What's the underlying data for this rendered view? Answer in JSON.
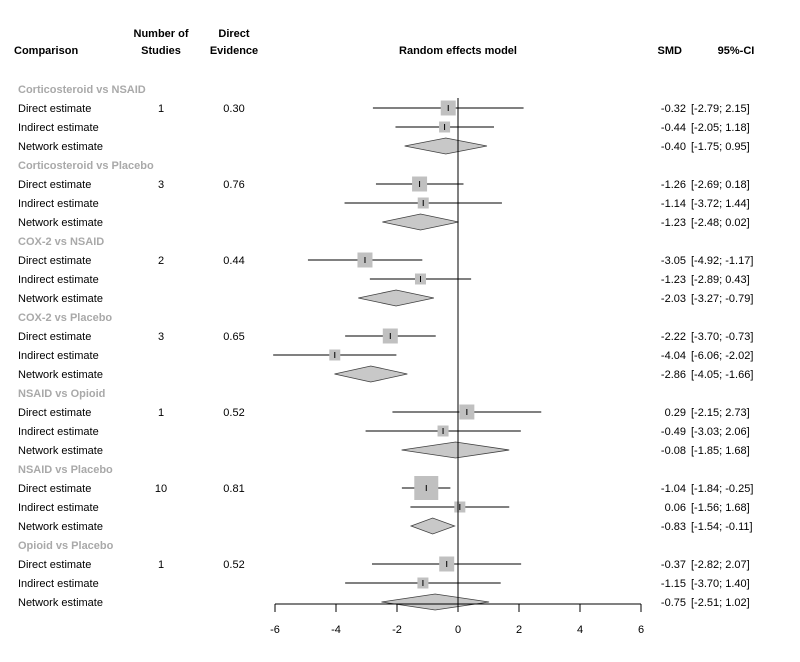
{
  "headers": {
    "comparison": "Comparison",
    "studies_line1": "Number of",
    "studies_line2": "Studies",
    "direct_line1": "Direct",
    "direct_line2": "Evidence",
    "model": "Random effects model",
    "smd": "SMD",
    "ci": "95%-CI"
  },
  "chart_data": {
    "type": "forest",
    "xlim": [
      -6,
      6
    ],
    "xticks": [
      "-6",
      "-4",
      "-2",
      "0",
      "2",
      "4",
      "6"
    ],
    "reference_line": 0,
    "groups": [
      {
        "title": "Corticosteroid vs NSAID",
        "studies": "1",
        "direct_evidence": "0.30",
        "rows": [
          {
            "label": "Direct estimate",
            "kind": "direct",
            "smd": -0.32,
            "lo": -2.79,
            "hi": 2.15,
            "smd_text": "-0.32",
            "ci_text": "[-2.79; 2.15]"
          },
          {
            "label": "Indirect estimate",
            "kind": "indirect",
            "smd": -0.44,
            "lo": -2.05,
            "hi": 1.18,
            "smd_text": "-0.44",
            "ci_text": "[-2.05; 1.18]"
          },
          {
            "label": "Network estimate",
            "kind": "network",
            "smd": -0.4,
            "lo": -1.75,
            "hi": 0.95,
            "smd_text": "-0.40",
            "ci_text": "[-1.75; 0.95]"
          }
        ]
      },
      {
        "title": "Corticosteroid vs Placebo",
        "studies": "3",
        "direct_evidence": "0.76",
        "rows": [
          {
            "label": "Direct estimate",
            "kind": "direct",
            "smd": -1.26,
            "lo": -2.69,
            "hi": 0.18,
            "smd_text": "-1.26",
            "ci_text": "[-2.69; 0.18]"
          },
          {
            "label": "Indirect estimate",
            "kind": "indirect",
            "smd": -1.14,
            "lo": -3.72,
            "hi": 1.44,
            "smd_text": "-1.14",
            "ci_text": "[-3.72; 1.44]"
          },
          {
            "label": "Network estimate",
            "kind": "network",
            "smd": -1.23,
            "lo": -2.48,
            "hi": 0.02,
            "smd_text": "-1.23",
            "ci_text": "[-2.48; 0.02]"
          }
        ]
      },
      {
        "title": "COX-2 vs NSAID",
        "studies": "2",
        "direct_evidence": "0.44",
        "rows": [
          {
            "label": "Direct estimate",
            "kind": "direct",
            "smd": -3.05,
            "lo": -4.92,
            "hi": -1.17,
            "smd_text": "-3.05",
            "ci_text": "[-4.92; -1.17]"
          },
          {
            "label": "Indirect estimate",
            "kind": "indirect",
            "smd": -1.23,
            "lo": -2.89,
            "hi": 0.43,
            "smd_text": "-1.23",
            "ci_text": "[-2.89; 0.43]"
          },
          {
            "label": "Network estimate",
            "kind": "network",
            "smd": -2.03,
            "lo": -3.27,
            "hi": -0.79,
            "smd_text": "-2.03",
            "ci_text": "[-3.27; -0.79]"
          }
        ]
      },
      {
        "title": "COX-2 vs Placebo",
        "studies": "3",
        "direct_evidence": "0.65",
        "rows": [
          {
            "label": "Direct estimate",
            "kind": "direct",
            "smd": -2.22,
            "lo": -3.7,
            "hi": -0.73,
            "smd_text": "-2.22",
            "ci_text": "[-3.70; -0.73]"
          },
          {
            "label": "Indirect estimate",
            "kind": "indirect",
            "smd": -4.04,
            "lo": -6.06,
            "hi": -2.02,
            "smd_text": "-4.04",
            "ci_text": "[-6.06; -2.02]"
          },
          {
            "label": "Network estimate",
            "kind": "network",
            "smd": -2.86,
            "lo": -4.05,
            "hi": -1.66,
            "smd_text": "-2.86",
            "ci_text": "[-4.05; -1.66]"
          }
        ]
      },
      {
        "title": "NSAID vs Opioid",
        "studies": "1",
        "direct_evidence": "0.52",
        "rows": [
          {
            "label": "Direct estimate",
            "kind": "direct",
            "smd": 0.29,
            "lo": -2.15,
            "hi": 2.73,
            "smd_text": "0.29",
            "ci_text": "[-2.15; 2.73]"
          },
          {
            "label": "Indirect estimate",
            "kind": "indirect",
            "smd": -0.49,
            "lo": -3.03,
            "hi": 2.06,
            "smd_text": "-0.49",
            "ci_text": "[-3.03; 2.06]"
          },
          {
            "label": "Network estimate",
            "kind": "network",
            "smd": -0.08,
            "lo": -1.85,
            "hi": 1.68,
            "smd_text": "-0.08",
            "ci_text": "[-1.85; 1.68]"
          }
        ]
      },
      {
        "title": "NSAID vs Placebo",
        "studies": "10",
        "direct_evidence": "0.81",
        "rows": [
          {
            "label": "Direct estimate",
            "kind": "direct",
            "smd": -1.04,
            "lo": -1.84,
            "hi": -0.25,
            "smd_text": "-1.04",
            "ci_text": "[-1.84; -0.25]"
          },
          {
            "label": "Indirect estimate",
            "kind": "indirect",
            "smd": 0.06,
            "lo": -1.56,
            "hi": 1.68,
            "smd_text": "0.06",
            "ci_text": "[-1.56; 1.68]"
          },
          {
            "label": "Network estimate",
            "kind": "network",
            "smd": -0.83,
            "lo": -1.54,
            "hi": -0.11,
            "smd_text": "-0.83",
            "ci_text": "[-1.54; -0.11]"
          }
        ]
      },
      {
        "title": "Opioid vs Placebo",
        "studies": "1",
        "direct_evidence": "0.52",
        "rows": [
          {
            "label": "Direct estimate",
            "kind": "direct",
            "smd": -0.37,
            "lo": -2.82,
            "hi": 2.07,
            "smd_text": "-0.37",
            "ci_text": "[-2.82; 2.07]"
          },
          {
            "label": "Indirect estimate",
            "kind": "indirect",
            "smd": -1.15,
            "lo": -3.7,
            "hi": 1.4,
            "smd_text": "-1.15",
            "ci_text": "[-3.70; 1.40]"
          },
          {
            "label": "Network estimate",
            "kind": "network",
            "smd": -0.75,
            "lo": -2.51,
            "hi": 1.02,
            "smd_text": "-0.75",
            "ci_text": "[-2.51; 1.02]"
          }
        ]
      }
    ]
  },
  "colors": {
    "group_title": "#a9a9a9",
    "box": "#c0c0c0",
    "diamond": "#c8c8c8",
    "line": "#000000"
  }
}
